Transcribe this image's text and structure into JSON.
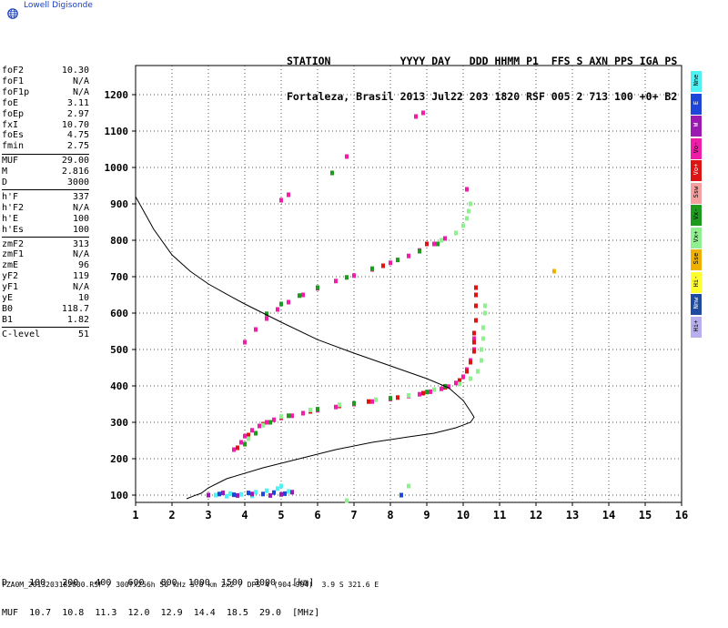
{
  "brand": {
    "name": "Lowell Digisonde",
    "logo_icon": "globe-icon"
  },
  "header": {
    "line1": "STATION           YYYY DAY   DDD HHMM P1  FFS S AXN PPS IGA PS",
    "line2": "Fortaleza, Brasil 2013 Jul22 203 1820 RSF 005 2 713 100 +0+ B2"
  },
  "params": {
    "group1": [
      {
        "k": "foF2",
        "v": "10.30"
      },
      {
        "k": "foF1",
        "v": "N/A"
      },
      {
        "k": "foF1p",
        "v": "N/A"
      },
      {
        "k": "foE",
        "v": "3.11"
      },
      {
        "k": "foEp",
        "v": "2.97"
      },
      {
        "k": "fxI",
        "v": "10.70"
      },
      {
        "k": "foEs",
        "v": "4.75"
      },
      {
        "k": "fmin",
        "v": "2.75"
      }
    ],
    "group2": [
      {
        "k": "MUF",
        "v": "29.00"
      },
      {
        "k": "M",
        "v": "2.816"
      },
      {
        "k": "D",
        "v": "3000"
      }
    ],
    "group3": [
      {
        "k": "h'F",
        "v": "337"
      },
      {
        "k": "h'F2",
        "v": "N/A"
      },
      {
        "k": "h'E",
        "v": "100"
      },
      {
        "k": "h'Es",
        "v": "100"
      }
    ],
    "group4": [
      {
        "k": "zmF2",
        "v": "313"
      },
      {
        "k": "zmF1",
        "v": "N/A"
      },
      {
        "k": "zmE",
        "v": "96"
      },
      {
        "k": "yF2",
        "v": "119"
      },
      {
        "k": "yF1",
        "v": "N/A"
      },
      {
        "k": "yE",
        "v": "10"
      },
      {
        "k": "B0",
        "v": "118.7"
      },
      {
        "k": "B1",
        "v": "1.82"
      }
    ],
    "group5": [
      {
        "k": "C-level",
        "v": "51"
      }
    ]
  },
  "legend": [
    {
      "label": "Nne",
      "color": "#4ff2f2"
    },
    {
      "label": "E",
      "color": "#1e46d8"
    },
    {
      "label": "W",
      "color": "#9a1ab2"
    },
    {
      "label": "Vo-",
      "color": "#ee1ea8"
    },
    {
      "label": "Vo+",
      "color": "#dd1414"
    },
    {
      "label": "Ssw",
      "color": "#f5a0a0"
    },
    {
      "label": "Vx-",
      "color": "#1e9a1e"
    },
    {
      "label": "Vx+",
      "color": "#90f090"
    },
    {
      "label": "Sse",
      "color": "#f0b000"
    },
    {
      "label": "Hi-",
      "color": "#ffff30"
    },
    {
      "label": "Nnw",
      "color": "#1e4aa0"
    },
    {
      "label": "Hi+",
      "color": "#b8b0ee"
    }
  ],
  "muf_table": {
    "row1": "D    100   200   400   600   800  1000  1500  3000   [km]",
    "row2": "MUF  10.7  10.8  11.3  12.0  12.9  14.4  18.5  29.0  [MHz]"
  },
  "footer": "FZA0M_2013203182000.RSF / 300fx256h 50 kHz 5.0 km 2x2 / DPS-4 (904-904)  3.9 S 321.6 E",
  "chart_data": {
    "type": "scatter",
    "xlim": [
      1,
      16
    ],
    "ylim": [
      80,
      1280
    ],
    "x_ticks": [
      1,
      2,
      3,
      4,
      5,
      6,
      7,
      8,
      9,
      10,
      11,
      12,
      13,
      14,
      15,
      16
    ],
    "y_ticks": [
      100,
      200,
      300,
      400,
      500,
      600,
      700,
      800,
      900,
      1000,
      1100,
      1200
    ],
    "grid": true,
    "profile_curve": [
      [
        1,
        920
      ],
      [
        1.5,
        830
      ],
      [
        2,
        760
      ],
      [
        2.5,
        715
      ],
      [
        3,
        680
      ],
      [
        3.5,
        652
      ],
      [
        4,
        625
      ],
      [
        5,
        575
      ],
      [
        6,
        527
      ],
      [
        7,
        490
      ],
      [
        8,
        455
      ],
      [
        9,
        420
      ],
      [
        9.6,
        395
      ],
      [
        10,
        360
      ],
      [
        10.2,
        330
      ],
      [
        10.3,
        314
      ],
      [
        10.2,
        300
      ],
      [
        9.8,
        285
      ],
      [
        9.2,
        270
      ],
      [
        8.5,
        260
      ],
      [
        7.5,
        245
      ],
      [
        6.5,
        225
      ],
      [
        5.5,
        200
      ],
      [
        4.5,
        175
      ],
      [
        3.5,
        145
      ],
      [
        3,
        120
      ],
      [
        2.8,
        105
      ],
      [
        2.6,
        98
      ],
      [
        2.4,
        90
      ]
    ],
    "traces": [
      {
        "name": "Vo-",
        "color": "#ee1ea8",
        "points": [
          [
            3.7,
            225
          ],
          [
            3.9,
            245
          ],
          [
            4.0,
            262
          ],
          [
            4.2,
            278
          ],
          [
            4.4,
            290
          ],
          [
            4.6,
            300
          ],
          [
            4.8,
            307
          ],
          [
            5.0,
            312
          ],
          [
            5.3,
            318
          ],
          [
            5.6,
            325
          ],
          [
            6.0,
            333
          ],
          [
            6.5,
            342
          ],
          [
            7.0,
            350
          ],
          [
            7.5,
            357
          ],
          [
            8.0,
            364
          ],
          [
            8.5,
            372
          ],
          [
            8.8,
            377
          ],
          [
            9.1,
            384
          ],
          [
            9.4,
            392
          ],
          [
            9.6,
            398
          ],
          [
            9.8,
            408
          ],
          [
            10.0,
            425
          ],
          [
            10.1,
            445
          ],
          [
            10.2,
            470
          ],
          [
            10.3,
            500
          ],
          [
            10.3,
            530
          ],
          [
            4.0,
            520
          ],
          [
            4.3,
            555
          ],
          [
            4.6,
            585
          ],
          [
            4.9,
            610
          ],
          [
            5.2,
            630
          ],
          [
            5.6,
            650
          ],
          [
            6.0,
            668
          ],
          [
            6.5,
            688
          ],
          [
            7.0,
            703
          ],
          [
            7.5,
            720
          ],
          [
            8.0,
            738
          ],
          [
            8.5,
            757
          ],
          [
            8.8,
            772
          ],
          [
            9.2,
            790
          ],
          [
            9.5,
            805
          ],
          [
            5.0,
            910
          ],
          [
            5.2,
            925
          ],
          [
            6.8,
            1030
          ],
          [
            8.7,
            1140
          ],
          [
            8.9,
            1150
          ],
          [
            10.1,
            940
          ]
        ]
      },
      {
        "name": "Vo+",
        "color": "#dd1414",
        "points": [
          [
            3.8,
            230
          ],
          [
            4.1,
            265
          ],
          [
            4.5,
            295
          ],
          [
            5.0,
            314
          ],
          [
            5.8,
            330
          ],
          [
            6.6,
            345
          ],
          [
            7.4,
            357
          ],
          [
            8.2,
            368
          ],
          [
            8.9,
            380
          ],
          [
            9.5,
            396
          ],
          [
            9.9,
            415
          ],
          [
            10.1,
            440
          ],
          [
            10.2,
            465
          ],
          [
            10.3,
            495
          ],
          [
            10.3,
            520
          ],
          [
            10.3,
            545
          ],
          [
            10.35,
            580
          ],
          [
            10.35,
            620
          ],
          [
            10.35,
            650
          ],
          [
            10.35,
            670
          ],
          [
            7.8,
            730
          ],
          [
            9.0,
            790
          ]
        ]
      },
      {
        "name": "Vx-",
        "color": "#1e9a1e",
        "points": [
          [
            4.0,
            240
          ],
          [
            4.3,
            270
          ],
          [
            4.7,
            300
          ],
          [
            5.2,
            318
          ],
          [
            6.0,
            336
          ],
          [
            7.0,
            352
          ],
          [
            8.0,
            366
          ],
          [
            9.0,
            383
          ],
          [
            9.5,
            399
          ],
          [
            4.6,
            598
          ],
          [
            5.0,
            625
          ],
          [
            5.5,
            648
          ],
          [
            6.0,
            670
          ],
          [
            6.8,
            698
          ],
          [
            7.5,
            722
          ],
          [
            8.2,
            746
          ],
          [
            8.8,
            770
          ],
          [
            9.3,
            790
          ],
          [
            6.4,
            985
          ]
        ]
      },
      {
        "name": "Vx+",
        "color": "#90f090",
        "points": [
          [
            4.1,
            255
          ],
          [
            4.5,
            292
          ],
          [
            5.0,
            316
          ],
          [
            5.8,
            334
          ],
          [
            6.6,
            348
          ],
          [
            7.6,
            362
          ],
          [
            8.5,
            374
          ],
          [
            9.2,
            390
          ],
          [
            9.9,
            405
          ],
          [
            10.2,
            420
          ],
          [
            10.4,
            440
          ],
          [
            10.5,
            470
          ],
          [
            10.5,
            500
          ],
          [
            10.55,
            530
          ],
          [
            10.55,
            560
          ],
          [
            10.6,
            600
          ],
          [
            10.6,
            620
          ],
          [
            9.4,
            800
          ],
          [
            9.8,
            820
          ],
          [
            10.0,
            840
          ],
          [
            10.1,
            860
          ],
          [
            10.15,
            880
          ],
          [
            10.2,
            900
          ],
          [
            8.5,
            125
          ],
          [
            6.8,
            85
          ]
        ]
      },
      {
        "name": "Sse",
        "color": "#f0b000",
        "points": [
          [
            12.5,
            715
          ]
        ]
      },
      {
        "name": "Nne",
        "color": "#4ff2f2",
        "points": [
          [
            3.2,
            100
          ],
          [
            3.6,
            104
          ],
          [
            3.9,
            102
          ],
          [
            4.3,
            108
          ],
          [
            4.6,
            112
          ],
          [
            4.9,
            118
          ],
          [
            5.2,
            110
          ],
          [
            5.0,
            125
          ],
          [
            4.2,
            98
          ],
          [
            3.5,
            97
          ]
        ]
      },
      {
        "name": "E",
        "color": "#1e46d8",
        "points": [
          [
            3.3,
            103
          ],
          [
            3.7,
            101
          ],
          [
            4.1,
            106
          ],
          [
            4.5,
            103
          ],
          [
            4.8,
            107
          ],
          [
            5.1,
            104
          ],
          [
            8.3,
            100
          ]
        ]
      },
      {
        "name": "W",
        "color": "#9a1ab2",
        "points": [
          [
            3.0,
            100
          ],
          [
            3.4,
            106
          ],
          [
            3.8,
            99
          ],
          [
            4.2,
            103
          ],
          [
            4.7,
            99
          ],
          [
            5.0,
            102
          ],
          [
            5.3,
            108
          ]
        ]
      }
    ]
  }
}
